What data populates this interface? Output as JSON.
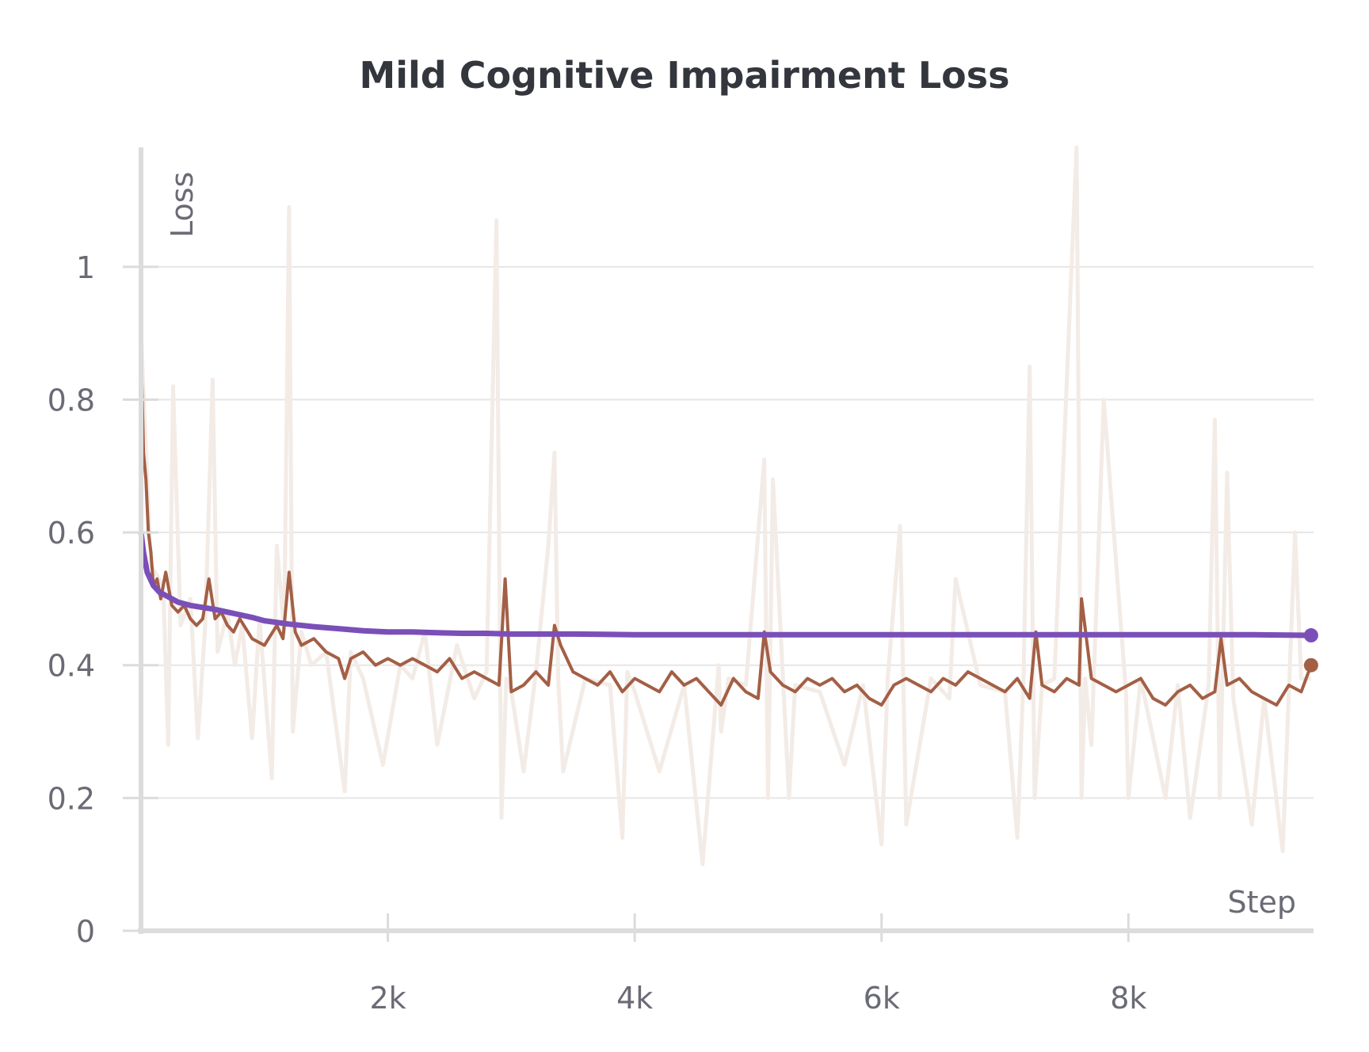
{
  "chart_data": {
    "type": "line",
    "title": "Mild Cognitive Impairment Loss",
    "xlabel": "Step",
    "ylabel": "Loss",
    "xlim": [
      0,
      9500
    ],
    "ylim": [
      0,
      1.18
    ],
    "x_ticks": [
      {
        "value": 2000,
        "label": "2k"
      },
      {
        "value": 4000,
        "label": "4k"
      },
      {
        "value": 6000,
        "label": "6k"
      },
      {
        "value": 8000,
        "label": "8k"
      }
    ],
    "y_ticks": [
      {
        "value": 0,
        "label": "0"
      },
      {
        "value": 0.2,
        "label": "0.2"
      },
      {
        "value": 0.4,
        "label": "0.4"
      },
      {
        "value": 0.6,
        "label": "0.6"
      },
      {
        "value": 0.8,
        "label": "0.8"
      },
      {
        "value": 1.0,
        "label": "1"
      }
    ],
    "grid": true,
    "series": [
      {
        "color": "#7b4fb8",
        "end_marker": true,
        "x": [
          0,
          20,
          50,
          100,
          150,
          200,
          300,
          400,
          500,
          600,
          700,
          800,
          900,
          1000,
          1200,
          1400,
          1600,
          1800,
          2000,
          2200,
          2400,
          2600,
          2800,
          3000,
          3500,
          4000,
          4500,
          5000,
          5500,
          6000,
          6500,
          7000,
          7500,
          8000,
          8500,
          9000,
          9480
        ],
        "y": [
          0.6,
          0.57,
          0.54,
          0.52,
          0.51,
          0.505,
          0.495,
          0.49,
          0.487,
          0.484,
          0.48,
          0.476,
          0.472,
          0.467,
          0.462,
          0.458,
          0.455,
          0.452,
          0.45,
          0.45,
          0.449,
          0.448,
          0.448,
          0.447,
          0.447,
          0.446,
          0.446,
          0.446,
          0.446,
          0.446,
          0.446,
          0.446,
          0.446,
          0.446,
          0.446,
          0.446,
          0.445
        ]
      },
      {
        "color": "#a35f45",
        "end_marker": true,
        "x": [
          0,
          20,
          40,
          60,
          80,
          100,
          130,
          160,
          200,
          250,
          300,
          350,
          400,
          450,
          500,
          550,
          600,
          650,
          700,
          750,
          800,
          900,
          1000,
          1100,
          1150,
          1200,
          1250,
          1300,
          1400,
          1500,
          1600,
          1650,
          1700,
          1800,
          1900,
          2000,
          2100,
          2200,
          2300,
          2400,
          2500,
          2600,
          2700,
          2800,
          2900,
          2950,
          3000,
          3100,
          3200,
          3300,
          3350,
          3400,
          3500,
          3600,
          3700,
          3800,
          3900,
          4000,
          4100,
          4200,
          4300,
          4400,
          4500,
          4600,
          4700,
          4800,
          4900,
          5000,
          5050,
          5100,
          5200,
          5300,
          5400,
          5500,
          5600,
          5700,
          5800,
          5900,
          6000,
          6100,
          6200,
          6300,
          6400,
          6500,
          6600,
          6700,
          6800,
          6900,
          7000,
          7100,
          7200,
          7250,
          7300,
          7400,
          7500,
          7600,
          7620,
          7700,
          7800,
          7900,
          8000,
          8100,
          8200,
          8300,
          8400,
          8500,
          8600,
          8700,
          8750,
          8800,
          8900,
          9000,
          9100,
          9200,
          9300,
          9400,
          9480
        ],
        "y": [
          0.88,
          0.72,
          0.68,
          0.6,
          0.57,
          0.52,
          0.53,
          0.5,
          0.54,
          0.49,
          0.48,
          0.49,
          0.47,
          0.46,
          0.47,
          0.53,
          0.47,
          0.48,
          0.46,
          0.45,
          0.47,
          0.44,
          0.43,
          0.46,
          0.44,
          0.54,
          0.45,
          0.43,
          0.44,
          0.42,
          0.41,
          0.38,
          0.41,
          0.42,
          0.4,
          0.41,
          0.4,
          0.41,
          0.4,
          0.39,
          0.41,
          0.38,
          0.39,
          0.38,
          0.37,
          0.53,
          0.36,
          0.37,
          0.39,
          0.37,
          0.46,
          0.43,
          0.39,
          0.38,
          0.37,
          0.39,
          0.36,
          0.38,
          0.37,
          0.36,
          0.39,
          0.37,
          0.38,
          0.36,
          0.34,
          0.38,
          0.36,
          0.35,
          0.45,
          0.39,
          0.37,
          0.36,
          0.38,
          0.37,
          0.38,
          0.36,
          0.37,
          0.35,
          0.34,
          0.37,
          0.38,
          0.37,
          0.36,
          0.38,
          0.37,
          0.39,
          0.38,
          0.37,
          0.36,
          0.38,
          0.35,
          0.45,
          0.37,
          0.36,
          0.38,
          0.37,
          0.5,
          0.38,
          0.37,
          0.36,
          0.37,
          0.38,
          0.35,
          0.34,
          0.36,
          0.37,
          0.35,
          0.36,
          0.44,
          0.37,
          0.38,
          0.36,
          0.35,
          0.34,
          0.37,
          0.36,
          0.4
        ]
      },
      {
        "color": "#f3ebe6",
        "end_marker": false,
        "x": [
          0,
          80,
          180,
          220,
          260,
          320,
          400,
          460,
          520,
          580,
          620,
          700,
          760,
          820,
          900,
          960,
          1060,
          1100,
          1160,
          1200,
          1230,
          1300,
          1380,
          1500,
          1650,
          1700,
          1800,
          1960,
          2100,
          2200,
          2300,
          2400,
          2560,
          2700,
          2800,
          2880,
          2920,
          2960,
          3000,
          3100,
          3200,
          3300,
          3350,
          3380,
          3420,
          3600,
          3800,
          3900,
          3940,
          4000,
          4200,
          4400,
          4550,
          4680,
          4700,
          4760,
          4900,
          5050,
          5080,
          5120,
          5250,
          5300,
          5500,
          5700,
          5850,
          6000,
          6050,
          6150,
          6200,
          6400,
          6550,
          6600,
          6800,
          7000,
          7100,
          7150,
          7200,
          7240,
          7300,
          7400,
          7580,
          7620,
          7650,
          7700,
          7800,
          7980,
          8000,
          8100,
          8300,
          8400,
          8500,
          8650,
          8700,
          8740,
          8800,
          8850,
          9000,
          9100,
          9250,
          9350,
          9400,
          9480
        ],
        "y": [
          0.9,
          0.55,
          0.52,
          0.28,
          0.82,
          0.46,
          0.5,
          0.29,
          0.46,
          0.83,
          0.42,
          0.48,
          0.4,
          0.46,
          0.29,
          0.47,
          0.23,
          0.58,
          0.45,
          1.09,
          0.3,
          0.45,
          0.4,
          0.42,
          0.21,
          0.42,
          0.38,
          0.25,
          0.4,
          0.38,
          0.45,
          0.28,
          0.43,
          0.35,
          0.39,
          1.07,
          0.17,
          0.38,
          0.36,
          0.24,
          0.39,
          0.58,
          0.72,
          0.38,
          0.24,
          0.38,
          0.37,
          0.14,
          0.39,
          0.36,
          0.24,
          0.37,
          0.1,
          0.4,
          0.3,
          0.38,
          0.37,
          0.71,
          0.2,
          0.68,
          0.2,
          0.37,
          0.36,
          0.25,
          0.37,
          0.13,
          0.38,
          0.61,
          0.16,
          0.38,
          0.35,
          0.53,
          0.37,
          0.36,
          0.14,
          0.38,
          0.85,
          0.2,
          0.37,
          0.38,
          1.18,
          0.2,
          0.38,
          0.28,
          0.8,
          0.36,
          0.2,
          0.38,
          0.2,
          0.37,
          0.17,
          0.37,
          0.77,
          0.2,
          0.69,
          0.35,
          0.16,
          0.35,
          0.12,
          0.6,
          0.38,
          0.38
        ]
      }
    ]
  }
}
